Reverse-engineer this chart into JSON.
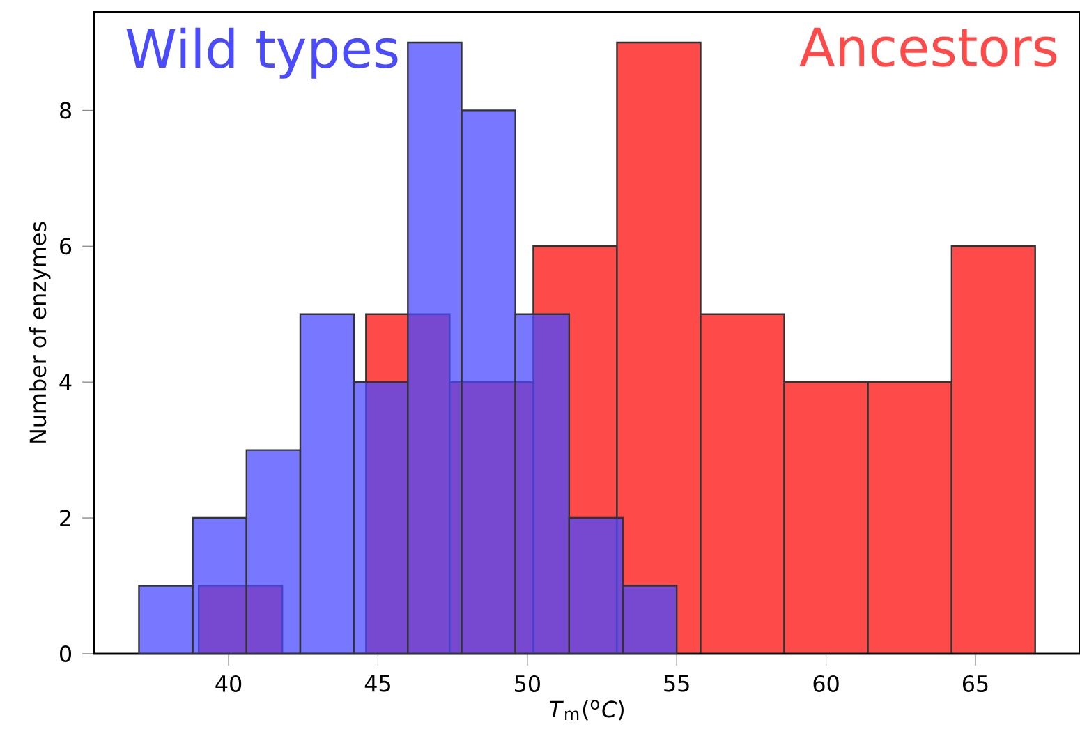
{
  "chart_data": [
    {
      "type": "histogram",
      "xlabel": "*T*$_{m}$($^{o}$*C*)",
      "ylabel": "Number of enzymes",
      "series": [
        {
          "name": "Wild types",
          "color": "#4a4aff",
          "values": [
            1,
            2,
            3,
            5,
            4,
            9,
            8,
            5,
            2,
            1
          ]
        }
      ],
      "bins": [
        37,
        38.8,
        40.6,
        42.4,
        44.2,
        46,
        47.8,
        49.6,
        51.4,
        53.2,
        55
      ],
      "xlim": [
        35.5,
        68.5
      ],
      "ylim": [
        0,
        9.45
      ],
      "xticks": [
        40,
        45,
        50,
        55,
        60,
        65
      ],
      "yticks": [
        0,
        2,
        4,
        6,
        8
      ]
    },
    {
      "type": "histogram",
      "series": [
        {
          "name": "Ancestors",
          "color": "#ff4a4a",
          "values": [
            1,
            0,
            5,
            4,
            6,
            9,
            5,
            4,
            4,
            6
          ]
        }
      ],
      "bins": [
        39,
        41.8,
        44.6,
        47.4,
        50.2,
        53,
        55.8,
        58.6,
        61.4,
        64.2,
        67
      ],
      "xlim": [
        35.5,
        68.5
      ],
      "ylim": [
        0,
        9.45
      ],
      "xticks": [
        40,
        45,
        50,
        55,
        60,
        65
      ],
      "yticks": [
        0,
        2,
        4,
        6,
        8
      ],
      "tick_labels": false
    }
  ]
}
